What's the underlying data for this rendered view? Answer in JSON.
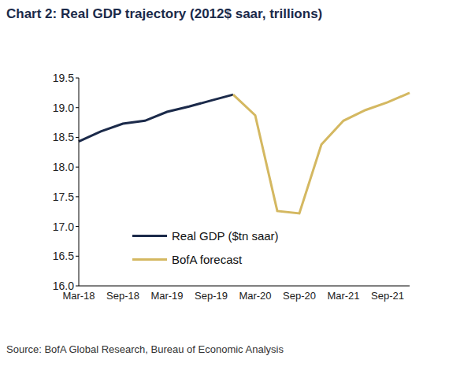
{
  "chart_data": {
    "type": "line",
    "title": "Chart 2: Real GDP trajectory (2012$ saar, trillions)",
    "source": "Source: BofA Global Research, Bureau of Economic Analysis",
    "categories": [
      "Mar-18",
      null,
      "Sep-18",
      null,
      "Mar-19",
      null,
      "Sep-19",
      null,
      "Mar-20",
      null,
      "Sep-20",
      null,
      "Mar-21",
      null,
      "Sep-21",
      null
    ],
    "series": [
      {
        "name": "Real GDP ($tn saar)",
        "color": "#1b2a4a",
        "line_style": "solid",
        "values": [
          18.43,
          18.6,
          18.73,
          18.78,
          18.93,
          19.02,
          19.12,
          19.22,
          null,
          null,
          null,
          null,
          null,
          null,
          null,
          null
        ]
      },
      {
        "name": "BofA forecast",
        "color": "#d4b861",
        "line_style": "solid",
        "values": [
          null,
          null,
          null,
          null,
          null,
          null,
          null,
          19.22,
          18.87,
          17.26,
          17.22,
          18.38,
          18.78,
          18.96,
          19.09,
          19.25
        ]
      }
    ],
    "ylim": [
      16,
      19.5
    ],
    "yticks": [
      {
        "value": 16,
        "label": "16.0"
      },
      16.5,
      {
        "value": 17,
        "label": "17.0"
      },
      17.5,
      {
        "value": 18,
        "label": "18.0"
      },
      18.5,
      {
        "value": 19,
        "label": "19.0"
      },
      19.5
    ],
    "grid": false,
    "legend": "lower left"
  }
}
